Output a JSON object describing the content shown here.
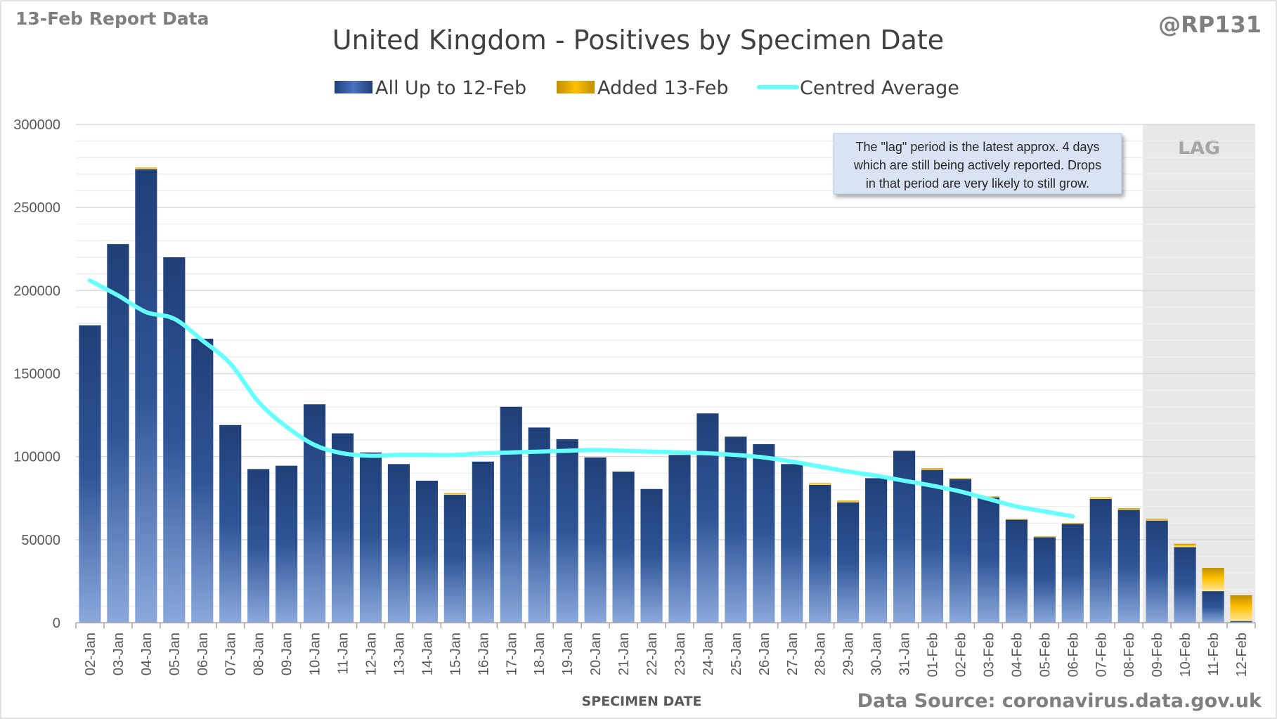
{
  "header": {
    "report_label": "13-Feb Report Data",
    "handle": "@RP131"
  },
  "footer": {
    "source": "Data Source: coronavirus.data.gov.uk"
  },
  "annotation": {
    "lines": [
      "The \"lag\" period is the latest approx. 4 days",
      "which are still being actively reported.  Drops",
      "in that period are very likely to still grow."
    ]
  },
  "lag_label": "LAG",
  "colors": {
    "base_bar": "#2f5597",
    "added_bar": "#ffc000",
    "average": "#66ffff",
    "lag_shade": "#e8e8e8",
    "note_bg": "#dae3f3"
  },
  "chart_data": {
    "type": "bar",
    "stacked": true,
    "title": "United Kingdom - Positives by Specimen Date",
    "xlabel": "SPECIMEN DATE",
    "ylabel": "",
    "ylim": [
      0,
      300000
    ],
    "yticks": [
      0,
      50000,
      100000,
      150000,
      200000,
      250000,
      300000
    ],
    "grid": true,
    "legend_position": "top",
    "categories": [
      "02-Jan",
      "03-Jan",
      "04-Jan",
      "05-Jan",
      "06-Jan",
      "07-Jan",
      "08-Jan",
      "09-Jan",
      "10-Jan",
      "11-Jan",
      "12-Jan",
      "13-Jan",
      "14-Jan",
      "15-Jan",
      "16-Jan",
      "17-Jan",
      "18-Jan",
      "19-Jan",
      "20-Jan",
      "21-Jan",
      "22-Jan",
      "23-Jan",
      "24-Jan",
      "25-Jan",
      "26-Jan",
      "27-Jan",
      "28-Jan",
      "29-Jan",
      "30-Jan",
      "31-Jan",
      "01-Feb",
      "02-Feb",
      "03-Feb",
      "04-Feb",
      "05-Feb",
      "06-Feb",
      "07-Feb",
      "08-Feb",
      "09-Feb",
      "10-Feb",
      "11-Feb",
      "12-Feb"
    ],
    "lag_categories": [
      "09-Feb",
      "10-Feb",
      "11-Feb",
      "12-Feb"
    ],
    "series": [
      {
        "name": "All Up to 12-Feb",
        "kind": "bar",
        "values": [
          179000,
          228000,
          273000,
          220000,
          171000,
          119000,
          92500,
          94500,
          131500,
          114000,
          102500,
          95500,
          85500,
          77000,
          97000,
          130000,
          117500,
          110500,
          99500,
          91000,
          80500,
          101000,
          126000,
          112000,
          107500,
          95500,
          83000,
          72500,
          87000,
          103500,
          92000,
          86500,
          75500,
          62000,
          51500,
          59500,
          74500,
          68000,
          61500,
          45500,
          19000,
          1000
        ]
      },
      {
        "name": "Added 13-Feb",
        "kind": "bar",
        "values": [
          0,
          0,
          1000,
          0,
          0,
          0,
          0,
          0,
          0,
          0,
          0,
          0,
          0,
          1000,
          0,
          0,
          0,
          0,
          0,
          0,
          0,
          0,
          0,
          0,
          0,
          0,
          1000,
          1000,
          0,
          0,
          1000,
          500,
          500,
          500,
          500,
          500,
          1000,
          1000,
          1000,
          2000,
          14000,
          15500
        ]
      },
      {
        "name": "Centred Average",
        "kind": "line",
        "values": [
          206000,
          197000,
          187000,
          183000,
          170000,
          156000,
          133000,
          118000,
          107000,
          102000,
          100500,
          101000,
          101000,
          101000,
          102000,
          102500,
          103000,
          103500,
          104000,
          103500,
          103000,
          102500,
          102000,
          101000,
          99500,
          97000,
          94000,
          91000,
          88500,
          85500,
          82500,
          79000,
          74500,
          70000,
          67000,
          64000,
          null,
          null,
          null,
          null,
          null,
          null
        ]
      }
    ]
  }
}
